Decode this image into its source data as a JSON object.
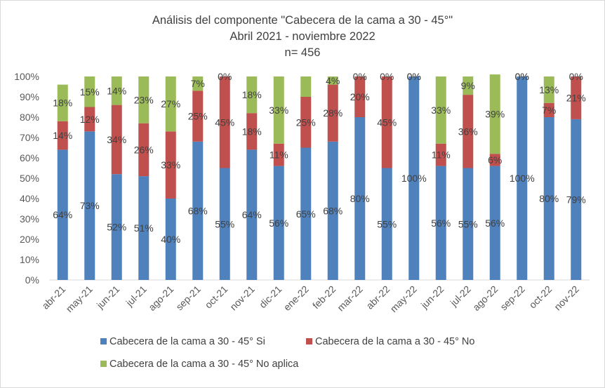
{
  "chart_data": {
    "type": "bar",
    "stacked": true,
    "title": "Análisis del componente \"Cabecera de la cama a 30 - 45°\"",
    "subtitle": "Abril 2021 - noviembre 2022",
    "subtitle2": "n= 456",
    "categories": [
      "abr-21",
      "may-21",
      "jun-21",
      "jul-21",
      "ago-21",
      "sep-21",
      "oct-21",
      "nov-21",
      "dic-21",
      "ene-22",
      "feb-22",
      "mar-22",
      "abr-22",
      "may-22",
      "jun-22",
      "jul-22",
      "ago-22",
      "sep-22",
      "oct-22",
      "nov-22"
    ],
    "y_ticks": [
      "0%",
      "10%",
      "20%",
      "30%",
      "40%",
      "50%",
      "60%",
      "70%",
      "80%",
      "90%",
      "100%"
    ],
    "ylim": [
      0,
      100
    ],
    "grid": false,
    "legend_position": "bottom",
    "series": [
      {
        "name": "Cabecera de la cama a 30 - 45° Si",
        "color": "#4f81bd",
        "values": [
          64,
          73,
          52,
          51,
          40,
          68,
          55,
          64,
          56,
          65,
          68,
          80,
          55,
          100,
          56,
          55,
          56,
          100,
          80,
          79
        ],
        "labels": [
          "64%",
          "73%",
          "52%",
          "51%",
          "40%",
          "68%",
          "55%",
          "64%",
          "56%",
          "65%",
          "68%",
          "80%",
          "55%",
          "100%",
          "56%",
          "55%",
          "56%",
          "100%",
          "80%",
          "79%"
        ]
      },
      {
        "name": "Cabecera de la cama a 30 - 45° No",
        "color": "#c0504d",
        "values": [
          14,
          12,
          34,
          26,
          33,
          25,
          45,
          18,
          11,
          25,
          28,
          20,
          45,
          0,
          11,
          36,
          6,
          0,
          7,
          21
        ],
        "labels": [
          "14%",
          "12%",
          "34%",
          "26%",
          "33%",
          "25%",
          "45%",
          "18%",
          "11%",
          "25%",
          "28%",
          "20%",
          "45%",
          "0%",
          "11%",
          "36%",
          "6%",
          "0%",
          "7%",
          "21%"
        ]
      },
      {
        "name": "Cabecera de la cama a 30 - 45° No aplica",
        "color": "#9bbb59",
        "values": [
          18,
          15,
          14,
          23,
          27,
          7,
          0,
          18,
          33,
          10,
          4,
          0,
          0,
          0,
          33,
          9,
          39,
          0,
          13,
          0
        ],
        "labels": [
          "18%",
          "15%",
          "14%",
          "23%",
          "27%",
          "7%",
          "0%",
          "18%",
          "33%",
          "",
          "4%",
          "0%",
          "0%",
          "0%",
          "33%",
          "9%",
          "39%",
          "0%",
          "13%",
          "0%"
        ]
      }
    ]
  }
}
